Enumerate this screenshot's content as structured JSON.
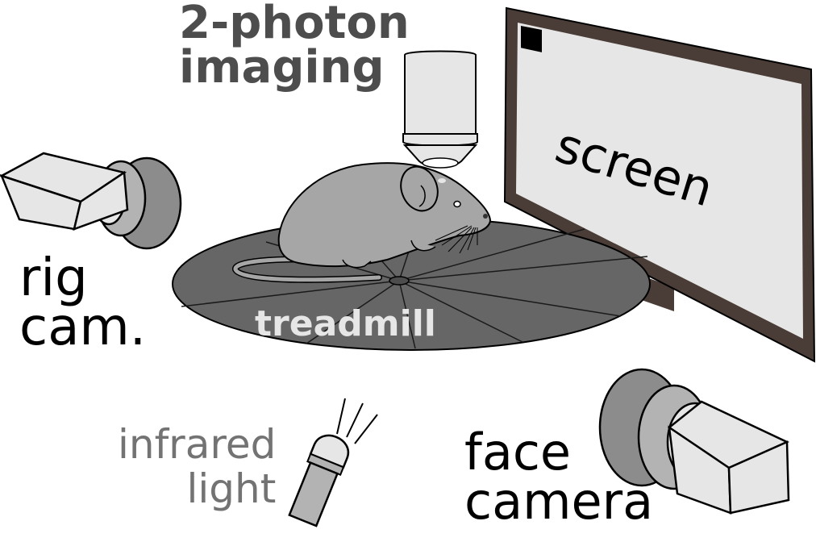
{
  "labels": {
    "two_photon": [
      "2-photon",
      "imaging"
    ],
    "rig_cam": [
      "rig",
      "cam."
    ],
    "treadmill": "treadmill",
    "infrared": [
      "infrared",
      "light"
    ],
    "face_camera": [
      "face",
      "camera"
    ],
    "screen": "screen"
  },
  "colors": {
    "screen_frame": "#4a3c36",
    "screen_panel": "#e6e6e6",
    "treadmill": "#666666",
    "mouse_body": "#a6a6a6",
    "camera_light": "#e6e6e6",
    "camera_mid": "#b3b3b3",
    "camera_dark": "#8c8c8c"
  }
}
